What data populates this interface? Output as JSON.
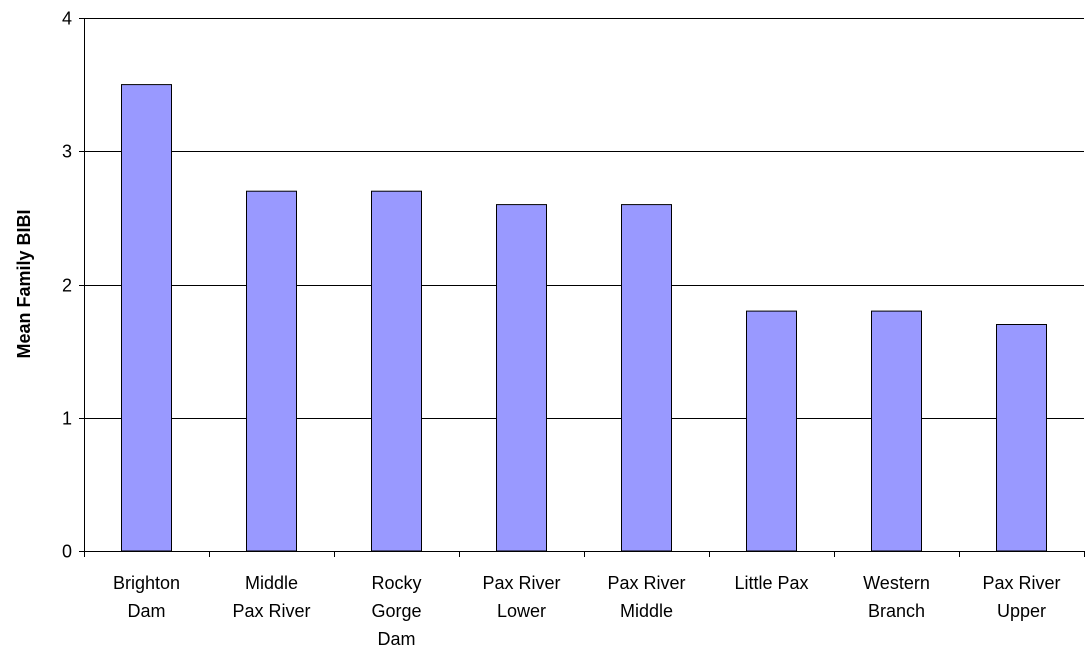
{
  "chart_data": {
    "type": "bar",
    "title": "",
    "xlabel": "",
    "ylabel": "Mean Family BIBI",
    "ylim": [
      0,
      4
    ],
    "yticks": [
      0,
      1,
      2,
      3,
      4
    ],
    "grid": true,
    "categories": [
      [
        "Brighton",
        "Dam"
      ],
      [
        "Middle",
        "Pax River"
      ],
      [
        "Rocky",
        "Gorge",
        "Dam"
      ],
      [
        "Pax River",
        "Lower"
      ],
      [
        "Pax River",
        "Middle"
      ],
      [
        "Little Pax"
      ],
      [
        "Western",
        "Branch"
      ],
      [
        "Pax River",
        "Upper"
      ]
    ],
    "values": [
      3.5,
      2.7,
      2.7,
      2.6,
      2.6,
      1.8,
      1.8,
      1.7
    ],
    "colors": {
      "bar_fill": "#9999ff",
      "bar_stroke": "#000000",
      "grid": "#000000",
      "axis": "#000000"
    }
  }
}
